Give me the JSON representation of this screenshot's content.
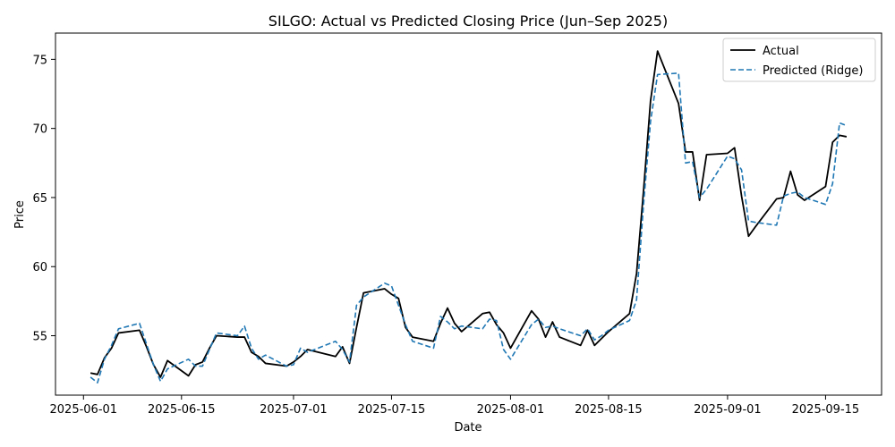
{
  "chart_data": {
    "type": "line",
    "title": "SILGO: Actual vs Predicted Closing Price (Jun–Sep 2025)",
    "xlabel": "Date",
    "ylabel": "Price",
    "xlim": [
      "2025-05-28",
      "2025-09-23"
    ],
    "ylim": [
      50.7,
      76.9
    ],
    "x_ticks": [
      "2025-06-01",
      "2025-06-15",
      "2025-07-01",
      "2025-07-15",
      "2025-08-01",
      "2025-08-15",
      "2025-09-01",
      "2025-09-15"
    ],
    "y_ticks": [
      55,
      60,
      65,
      70,
      75
    ],
    "grid": false,
    "legend_position": "top-right",
    "colors": {
      "actual": "#000000",
      "predicted": "#1f77b4"
    },
    "series": [
      {
        "name": "Actual",
        "style": "solid",
        "x": [
          "2025-06-02",
          "2025-06-03",
          "2025-06-04",
          "2025-06-05",
          "2025-06-06",
          "2025-06-09",
          "2025-06-10",
          "2025-06-11",
          "2025-06-12",
          "2025-06-13",
          "2025-06-16",
          "2025-06-17",
          "2025-06-18",
          "2025-06-19",
          "2025-06-20",
          "2025-06-23",
          "2025-06-24",
          "2025-06-25",
          "2025-06-26",
          "2025-06-27",
          "2025-06-30",
          "2025-07-01",
          "2025-07-02",
          "2025-07-03",
          "2025-07-07",
          "2025-07-08",
          "2025-07-09",
          "2025-07-10",
          "2025-07-11",
          "2025-07-14",
          "2025-07-15",
          "2025-07-16",
          "2025-07-17",
          "2025-07-18",
          "2025-07-21",
          "2025-07-22",
          "2025-07-23",
          "2025-07-24",
          "2025-07-25",
          "2025-07-28",
          "2025-07-29",
          "2025-07-30",
          "2025-07-31",
          "2025-08-01",
          "2025-08-04",
          "2025-08-05",
          "2025-08-06",
          "2025-08-07",
          "2025-08-08",
          "2025-08-11",
          "2025-08-12",
          "2025-08-13",
          "2025-08-14",
          "2025-08-15",
          "2025-08-18",
          "2025-08-19",
          "2025-08-20",
          "2025-08-21",
          "2025-08-22",
          "2025-08-25",
          "2025-08-26",
          "2025-08-27",
          "2025-08-28",
          "2025-08-29",
          "2025-09-01",
          "2025-09-02",
          "2025-09-03",
          "2025-09-04",
          "2025-09-05",
          "2025-09-08",
          "2025-09-09",
          "2025-09-10",
          "2025-09-11",
          "2025-09-12",
          "2025-09-15",
          "2025-09-16",
          "2025-09-17",
          "2025-09-18"
        ],
        "y": [
          52.3,
          52.2,
          53.4,
          54.1,
          55.2,
          55.4,
          54.2,
          52.9,
          52.0,
          53.2,
          52.1,
          52.9,
          53.1,
          54.1,
          55.0,
          54.9,
          54.9,
          53.8,
          53.5,
          53.0,
          52.8,
          53.1,
          53.5,
          54.0,
          53.5,
          54.2,
          53.0,
          55.6,
          58.1,
          58.4,
          58.0,
          57.7,
          55.6,
          54.9,
          54.6,
          55.9,
          57.0,
          55.9,
          55.3,
          56.6,
          56.7,
          55.8,
          55.2,
          54.1,
          56.8,
          56.2,
          54.9,
          56.0,
          54.9,
          54.3,
          55.4,
          54.3,
          54.8,
          55.3,
          56.6,
          59.5,
          65.5,
          72.0,
          75.6,
          71.8,
          68.3,
          68.3,
          64.8,
          68.1,
          68.2,
          68.6,
          65.1,
          62.2,
          62.9,
          64.9,
          65.0,
          66.9,
          65.2,
          64.8,
          65.8,
          69.0,
          69.5,
          69.4
        ]
      },
      {
        "name": "Predicted (Ridge)",
        "style": "dashed",
        "x": [
          "2025-06-02",
          "2025-06-03",
          "2025-06-04",
          "2025-06-05",
          "2025-06-06",
          "2025-06-09",
          "2025-06-10",
          "2025-06-11",
          "2025-06-12",
          "2025-06-13",
          "2025-06-16",
          "2025-06-17",
          "2025-06-18",
          "2025-06-19",
          "2025-06-20",
          "2025-06-23",
          "2025-06-24",
          "2025-06-25",
          "2025-06-26",
          "2025-06-27",
          "2025-06-30",
          "2025-07-01",
          "2025-07-02",
          "2025-07-03",
          "2025-07-07",
          "2025-07-08",
          "2025-07-09",
          "2025-07-10",
          "2025-07-11",
          "2025-07-14",
          "2025-07-15",
          "2025-07-16",
          "2025-07-17",
          "2025-07-18",
          "2025-07-21",
          "2025-07-22",
          "2025-07-23",
          "2025-07-24",
          "2025-07-25",
          "2025-07-28",
          "2025-07-29",
          "2025-07-30",
          "2025-07-31",
          "2025-08-01",
          "2025-08-04",
          "2025-08-05",
          "2025-08-06",
          "2025-08-07",
          "2025-08-08",
          "2025-08-11",
          "2025-08-12",
          "2025-08-13",
          "2025-08-14",
          "2025-08-15",
          "2025-08-18",
          "2025-08-19",
          "2025-08-20",
          "2025-08-21",
          "2025-08-22",
          "2025-08-25",
          "2025-08-26",
          "2025-08-27",
          "2025-08-28",
          "2025-08-29",
          "2025-09-01",
          "2025-09-02",
          "2025-09-03",
          "2025-09-04",
          "2025-09-05",
          "2025-09-08",
          "2025-09-09",
          "2025-09-10",
          "2025-09-11",
          "2025-09-12",
          "2025-09-15",
          "2025-09-16",
          "2025-09-17",
          "2025-09-18"
        ],
        "y": [
          52.0,
          51.6,
          53.3,
          54.3,
          55.5,
          55.9,
          54.4,
          52.9,
          51.7,
          52.6,
          53.3,
          52.8,
          52.8,
          54.0,
          55.2,
          55.0,
          55.7,
          54.1,
          53.3,
          53.6,
          52.8,
          52.9,
          54.1,
          53.8,
          54.6,
          54.0,
          53.1,
          57.2,
          57.8,
          58.8,
          58.6,
          57.2,
          55.8,
          54.6,
          54.1,
          56.4,
          56.0,
          55.5,
          55.7,
          55.5,
          56.2,
          56.1,
          54.0,
          53.3,
          55.8,
          56.2,
          55.6,
          55.7,
          55.5,
          55.0,
          55.5,
          54.7,
          55.0,
          55.4,
          56.1,
          57.6,
          64.5,
          70.5,
          73.9,
          74.0,
          67.5,
          67.6,
          65.0,
          65.6,
          68.0,
          67.8,
          67.0,
          63.3,
          63.2,
          63.0,
          65.1,
          65.3,
          65.4,
          65.0,
          64.5,
          66.0,
          70.4,
          70.2
        ]
      }
    ]
  }
}
